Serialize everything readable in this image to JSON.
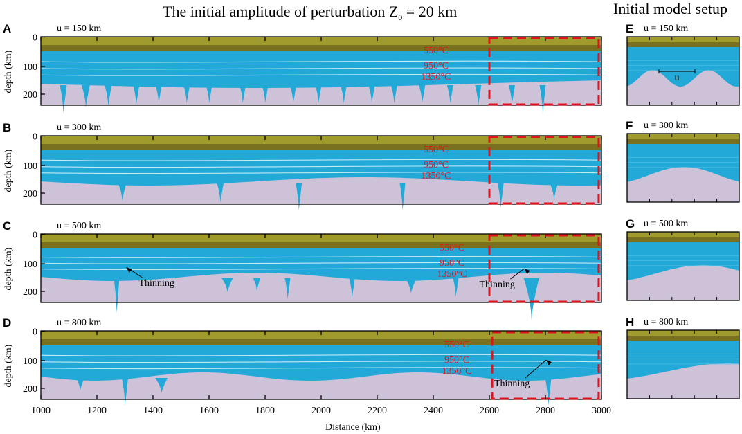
{
  "title_main": "The initial amplitude of perturbation Z",
  "title_sub": "0",
  "title_tail": " = 20 km",
  "title_side": "Initial model setup",
  "xlabel": "Distance (km)",
  "ylabel": "depth (km)",
  "x_ticks": [
    "1000",
    "1200",
    "1400",
    "1600",
    "1800",
    "2000",
    "2200",
    "2400",
    "2600",
    "2800",
    "3000"
  ],
  "y_ticks": [
    "0",
    "100",
    "200"
  ],
  "isotherms": [
    "550°C",
    "950°C",
    "1350°C"
  ],
  "annotation_thinning": "Thinning",
  "setup_marker": "u",
  "colors": {
    "crust_top": "#a09b2c",
    "crust_bottom": "#797020",
    "lithosphere": "#22a9d8",
    "mantle": "#cdc2d8",
    "isotherm_line": "#bfeaf6",
    "highlight_box": "#e0141e"
  },
  "panels": [
    {
      "letter": "A",
      "label": "u = 150 km"
    },
    {
      "letter": "B",
      "label": "u = 300 km"
    },
    {
      "letter": "C",
      "label": "u = 500 km"
    },
    {
      "letter": "D",
      "label": "u = 800 km"
    }
  ],
  "setups": [
    {
      "letter": "E",
      "label": "u = 150 km"
    },
    {
      "letter": "F",
      "label": "u = 300 km"
    },
    {
      "letter": "G",
      "label": "u = 500 km"
    },
    {
      "letter": "H",
      "label": "u = 800 km"
    }
  ]
}
